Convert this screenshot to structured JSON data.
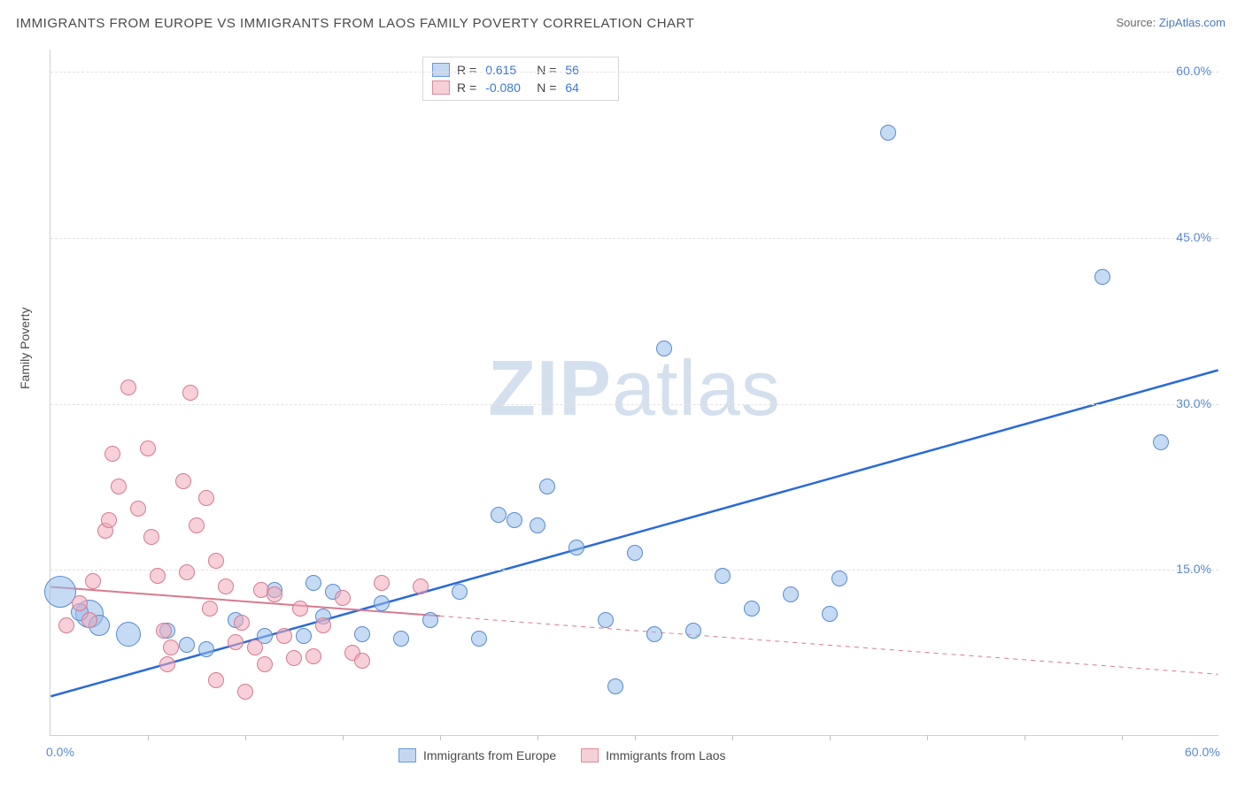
{
  "title": "IMMIGRANTS FROM EUROPE VS IMMIGRANTS FROM LAOS FAMILY POVERTY CORRELATION CHART",
  "source_label": "Source: ",
  "source_name": "ZipAtlas.com",
  "y_axis_label": "Family Poverty",
  "watermark": {
    "bold": "ZIP",
    "rest": "atlas"
  },
  "chart": {
    "type": "scatter",
    "xlim": [
      0,
      60
    ],
    "ylim": [
      0,
      62
    ],
    "x_ticks": [
      {
        "v": 0,
        "l": "0.0%"
      },
      {
        "v": 60,
        "l": "60.0%"
      }
    ],
    "x_minor_step": 5,
    "y_ticks": [
      {
        "v": 15,
        "l": "15.0%"
      },
      {
        "v": 30,
        "l": "30.0%"
      },
      {
        "v": 45,
        "l": "45.0%"
      },
      {
        "v": 60,
        "l": "60.0%"
      }
    ],
    "grid_color": "#e2e2e2",
    "background_color": "#ffffff",
    "marker_radius": 9,
    "series": [
      {
        "name": "Immigrants from Europe",
        "color_fill": "#c4d7f0",
        "color_stroke": "#5a8ad0",
        "R": "0.615",
        "N": "56",
        "trend": {
          "x1": 0,
          "y1": 3.5,
          "x2": 60,
          "y2": 33.0,
          "solid_until_x": 60,
          "stroke": "#2a6ad8",
          "width": 2.5
        },
        "points": [
          [
            0.5,
            13.0,
            18
          ],
          [
            2.0,
            11.0,
            16
          ],
          [
            4.0,
            9.2,
            14
          ],
          [
            2.5,
            10.0,
            12
          ],
          [
            1.5,
            11.2,
            10
          ],
          [
            6.0,
            9.5
          ],
          [
            7.0,
            8.2
          ],
          [
            8.0,
            7.8
          ],
          [
            9.5,
            10.5
          ],
          [
            11.0,
            9.0
          ],
          [
            11.5,
            13.2
          ],
          [
            13.0,
            9.0
          ],
          [
            14.0,
            10.8
          ],
          [
            14.5,
            13.0
          ],
          [
            16.0,
            9.2
          ],
          [
            17.0,
            12.0
          ],
          [
            18.0,
            8.8
          ],
          [
            19.5,
            10.5
          ],
          [
            13.5,
            13.8
          ],
          [
            21.0,
            13.0
          ],
          [
            22.0,
            8.8
          ],
          [
            23.0,
            20.0
          ],
          [
            23.8,
            19.5
          ],
          [
            25.0,
            19.0
          ],
          [
            25.5,
            22.5
          ],
          [
            27.0,
            17.0
          ],
          [
            28.5,
            10.5
          ],
          [
            30.0,
            16.5
          ],
          [
            31.0,
            9.2
          ],
          [
            33.0,
            9.5
          ],
          [
            29.0,
            4.5
          ],
          [
            31.5,
            35.0
          ],
          [
            34.5,
            14.5
          ],
          [
            36.0,
            11.5
          ],
          [
            38.0,
            12.8
          ],
          [
            40.0,
            11.0
          ],
          [
            40.5,
            14.2
          ],
          [
            43.0,
            54.5
          ],
          [
            54.0,
            41.5
          ],
          [
            57.0,
            26.5
          ]
        ]
      },
      {
        "name": "Immigrants from Laos",
        "color_fill": "#f6d0d7",
        "color_stroke": "#e08a9b",
        "R": "-0.080",
        "N": "64",
        "trend": {
          "x1": 0,
          "y1": 13.4,
          "x2": 60,
          "y2": 5.5,
          "solid_until_x": 20,
          "stroke": "#d87a90",
          "width": 2
        },
        "points": [
          [
            0.8,
            10.0
          ],
          [
            1.5,
            12.0
          ],
          [
            2.0,
            10.5
          ],
          [
            2.2,
            14.0
          ],
          [
            2.8,
            18.5
          ],
          [
            3.0,
            19.5
          ],
          [
            3.2,
            25.5
          ],
          [
            3.5,
            22.5
          ],
          [
            4.0,
            31.5
          ],
          [
            4.5,
            20.5
          ],
          [
            5.0,
            26.0
          ],
          [
            5.2,
            18.0
          ],
          [
            5.5,
            14.5
          ],
          [
            5.8,
            9.5
          ],
          [
            6.0,
            6.5
          ],
          [
            6.2,
            8.0
          ],
          [
            6.8,
            23.0
          ],
          [
            7.0,
            14.8
          ],
          [
            7.2,
            31.0
          ],
          [
            7.5,
            19.0
          ],
          [
            8.0,
            21.5
          ],
          [
            8.2,
            11.5
          ],
          [
            8.5,
            5.0
          ],
          [
            8.5,
            15.8
          ],
          [
            9.0,
            13.5
          ],
          [
            9.5,
            8.5
          ],
          [
            9.8,
            10.2
          ],
          [
            10.0,
            4.0
          ],
          [
            10.5,
            8.0
          ],
          [
            10.8,
            13.2
          ],
          [
            11.0,
            6.5
          ],
          [
            11.5,
            12.8
          ],
          [
            12.0,
            9.0
          ],
          [
            12.5,
            7.0
          ],
          [
            12.8,
            11.5
          ],
          [
            13.5,
            7.2
          ],
          [
            14.0,
            10.0
          ],
          [
            15.0,
            12.5
          ],
          [
            15.5,
            7.5
          ],
          [
            16.0,
            6.8
          ],
          [
            17.0,
            13.8
          ],
          [
            19.0,
            13.5
          ]
        ]
      }
    ],
    "legend_bottom": [
      {
        "swatch": "blue",
        "label": "Immigrants from Europe"
      },
      {
        "swatch": "pink",
        "label": "Immigrants from Laos"
      }
    ]
  }
}
